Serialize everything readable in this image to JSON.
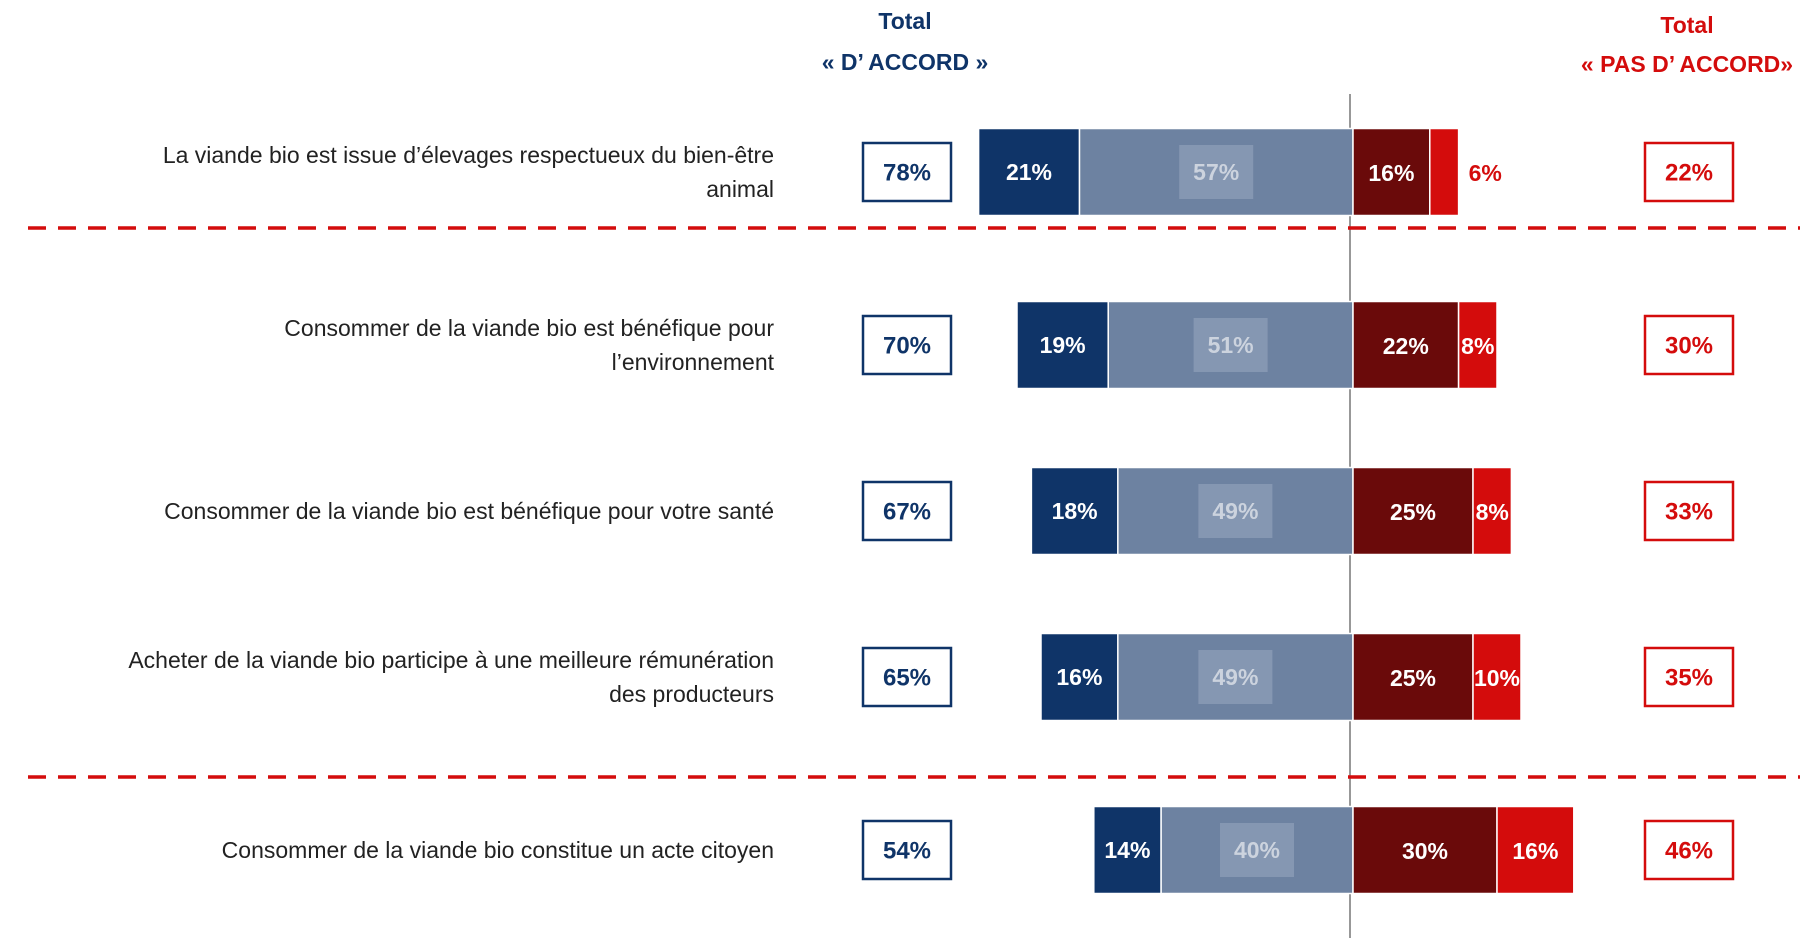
{
  "chart_data": {
    "type": "diverging-bar",
    "agree_header": [
      "Total",
      "« D’ ACCORD »"
    ],
    "disagree_header": [
      "Total",
      "« PAS D’ ACCORD»"
    ],
    "categories": [
      "La viande bio est issue d’élevages respectueux du bien-être\nanimal",
      "Consommer de la viande bio est bénéfique pour\nl’environnement",
      "Consommer de la viande bio est bénéfique pour votre santé",
      "Acheter de la viande bio participe à une meilleure rémunération\ndes producteurs",
      "Consommer de la viande bio constitue un acte citoyen"
    ],
    "series": [
      {
        "color": "#0f3468",
        "side": "left",
        "values": [
          21,
          19,
          18,
          16,
          14
        ],
        "value_labels": [
          "21%",
          "19%",
          "18%",
          "16%",
          "14%"
        ]
      },
      {
        "color": "#6d82a1",
        "side": "left",
        "values": [
          57,
          51,
          49,
          49,
          40
        ],
        "value_labels": [
          "57%",
          "51%",
          "49%",
          "49%",
          "40%"
        ]
      },
      {
        "color": "#6a0a0a",
        "side": "right",
        "values": [
          16,
          22,
          25,
          25,
          30
        ],
        "value_labels": [
          "16%",
          "22%",
          "25%",
          "25%",
          "30%"
        ]
      },
      {
        "color": "#d40c0c",
        "side": "right",
        "values": [
          6,
          8,
          8,
          10,
          16
        ],
        "value_labels": [
          "6%",
          "8%",
          "8%",
          "10%",
          "16%"
        ]
      }
    ],
    "total_agree": {
      "color": "#0f3468",
      "values": [
        78,
        70,
        67,
        65,
        54
      ],
      "value_labels": [
        "78%",
        "70%",
        "67%",
        "65%",
        "54%"
      ]
    },
    "total_disagree": {
      "color": "#d40c0c",
      "values": [
        22,
        30,
        33,
        35,
        46
      ],
      "value_labels": [
        "22%",
        "30%",
        "33%",
        "35%",
        "46%"
      ]
    }
  }
}
